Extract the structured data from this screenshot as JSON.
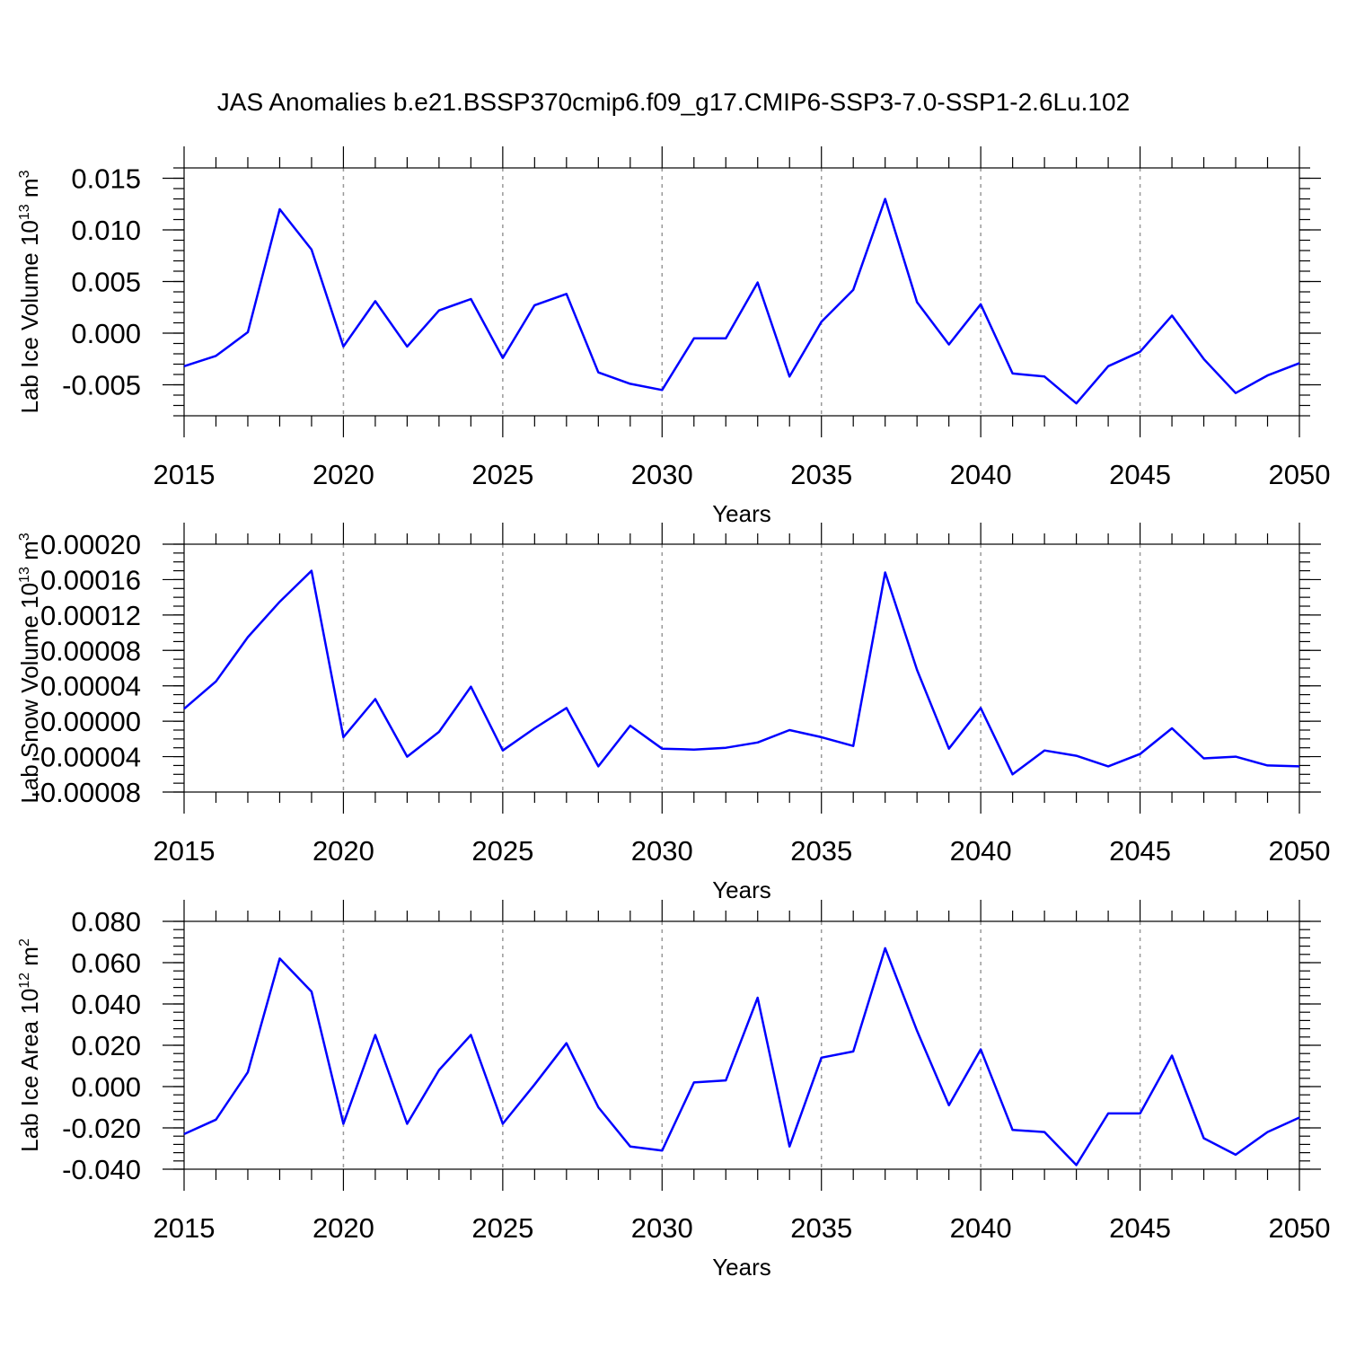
{
  "title": "JAS Anomalies b.e21.BSSP370cmip6.f09_g17.CMIP6-SSP3-7.0-SSP1-2.6Lu.102",
  "line_color": "#0000ff",
  "chart_data": [
    {
      "type": "line",
      "ylabel_text": "Lab Ice Volume 10",
      "ylabel_exp": "13",
      "ylabel_unit": " m",
      "ylabel_unit_exp": "3",
      "xlabel": "Years",
      "xlim": [
        2015,
        2050
      ],
      "ylim": [
        -0.008,
        0.016
      ],
      "yticks": [
        -0.005,
        0.0,
        0.005,
        0.01,
        0.015
      ],
      "ytick_labels": [
        "-0.005",
        "0.000",
        "0.005",
        "0.010",
        "0.015"
      ],
      "y_minor_step": 0.001,
      "xticks": [
        2015,
        2020,
        2025,
        2030,
        2035,
        2040,
        2045,
        2050
      ],
      "xtick_labels": [
        "2015",
        "2020",
        "2025",
        "2030",
        "2035",
        "2040",
        "2045",
        "2050"
      ],
      "x": [
        2015,
        2016,
        2017,
        2018,
        2019,
        2020,
        2021,
        2022,
        2023,
        2024,
        2025,
        2026,
        2027,
        2028,
        2029,
        2030,
        2031,
        2032,
        2033,
        2034,
        2035,
        2036,
        2037,
        2038,
        2039,
        2040,
        2041,
        2042,
        2043,
        2044,
        2045,
        2046,
        2047,
        2048,
        2049,
        2050
      ],
      "series": [
        {
          "values": [
            -0.0032,
            -0.0022,
            0.0001,
            0.012,
            0.0081,
            -0.0013,
            0.0031,
            -0.0013,
            0.0022,
            0.0033,
            -0.0024,
            0.0027,
            0.0038,
            -0.0038,
            -0.0049,
            -0.0055,
            -0.0005,
            -0.0005,
            0.0049,
            -0.0042,
            0.0011,
            0.0042,
            0.013,
            0.003,
            -0.0011,
            0.0028,
            -0.0039,
            -0.0042,
            -0.0068,
            -0.0032,
            -0.0018,
            0.0017,
            -0.0025,
            -0.0058,
            -0.0041,
            -0.0029
          ]
        }
      ]
    },
    {
      "type": "line",
      "ylabel_text": "Lab Snow Volume 10",
      "ylabel_exp": "13",
      "ylabel_unit": " m",
      "ylabel_unit_exp": "3",
      "xlabel": "Years",
      "xlim": [
        2015,
        2050
      ],
      "ylim": [
        -8e-05,
        0.0002
      ],
      "yticks": [
        -8e-05,
        -4e-05,
        0.0,
        4e-05,
        8e-05,
        0.00012,
        0.00016,
        0.0002
      ],
      "ytick_labels": [
        "-0.00008",
        "-0.00004",
        "0.00000",
        "0.00004",
        "0.00008",
        "0.00012",
        "0.00016",
        "0.00020"
      ],
      "y_minor_step": 1e-05,
      "xticks": [
        2015,
        2020,
        2025,
        2030,
        2035,
        2040,
        2045,
        2050
      ],
      "xtick_labels": [
        "2015",
        "2020",
        "2025",
        "2030",
        "2035",
        "2040",
        "2045",
        "2050"
      ],
      "x": [
        2015,
        2016,
        2017,
        2018,
        2019,
        2020,
        2021,
        2022,
        2023,
        2024,
        2025,
        2026,
        2027,
        2028,
        2029,
        2030,
        2031,
        2032,
        2033,
        2034,
        2035,
        2036,
        2037,
        2038,
        2039,
        2040,
        2041,
        2042,
        2043,
        2044,
        2045,
        2046,
        2047,
        2048,
        2049,
        2050
      ],
      "series": [
        {
          "values": [
            1.4e-05,
            4.5e-05,
            9.5e-05,
            0.000135,
            0.00017,
            -1.8e-05,
            2.5e-05,
            -4e-05,
            -1.2e-05,
            3.9e-05,
            -3.3e-05,
            -8e-06,
            1.5e-05,
            -5.1e-05,
            -5e-06,
            -3.1e-05,
            -3.2e-05,
            -3e-05,
            -2.4e-05,
            -1e-05,
            -1.8e-05,
            -2.8e-05,
            0.000168,
            5.8e-05,
            -3.1e-05,
            1.5e-05,
            -6e-05,
            -3.3e-05,
            -3.9e-05,
            -5.1e-05,
            -3.7e-05,
            -8e-06,
            -4.2e-05,
            -4e-05,
            -5e-05,
            -5.1e-05
          ]
        }
      ]
    },
    {
      "type": "line",
      "ylabel_text": "Lab Ice Area 10",
      "ylabel_exp": "12",
      "ylabel_unit": " m",
      "ylabel_unit_exp": "2",
      "xlabel": "Years",
      "xlim": [
        2015,
        2050
      ],
      "ylim": [
        -0.04,
        0.08
      ],
      "yticks": [
        -0.04,
        -0.02,
        0.0,
        0.02,
        0.04,
        0.06,
        0.08
      ],
      "ytick_labels": [
        "-0.040",
        "-0.020",
        "0.000",
        "0.020",
        "0.040",
        "0.060",
        "0.080"
      ],
      "y_minor_step": 0.004,
      "xticks": [
        2015,
        2020,
        2025,
        2030,
        2035,
        2040,
        2045,
        2050
      ],
      "xtick_labels": [
        "2015",
        "2020",
        "2025",
        "2030",
        "2035",
        "2040",
        "2045",
        "2050"
      ],
      "x": [
        2015,
        2016,
        2017,
        2018,
        2019,
        2020,
        2021,
        2022,
        2023,
        2024,
        2025,
        2026,
        2027,
        2028,
        2029,
        2030,
        2031,
        2032,
        2033,
        2034,
        2035,
        2036,
        2037,
        2038,
        2039,
        2040,
        2041,
        2042,
        2043,
        2044,
        2045,
        2046,
        2047,
        2048,
        2049,
        2050
      ],
      "series": [
        {
          "values": [
            -0.023,
            -0.016,
            0.007,
            0.062,
            0.046,
            -0.018,
            0.025,
            -0.018,
            0.008,
            0.025,
            -0.018,
            0.001,
            0.021,
            -0.01,
            -0.029,
            -0.031,
            0.002,
            0.003,
            0.043,
            -0.029,
            0.014,
            0.017,
            0.067,
            0.027,
            -0.009,
            0.018,
            -0.021,
            -0.022,
            -0.038,
            -0.013,
            -0.013,
            0.015,
            -0.025,
            -0.033,
            -0.022,
            -0.015
          ]
        }
      ]
    }
  ]
}
